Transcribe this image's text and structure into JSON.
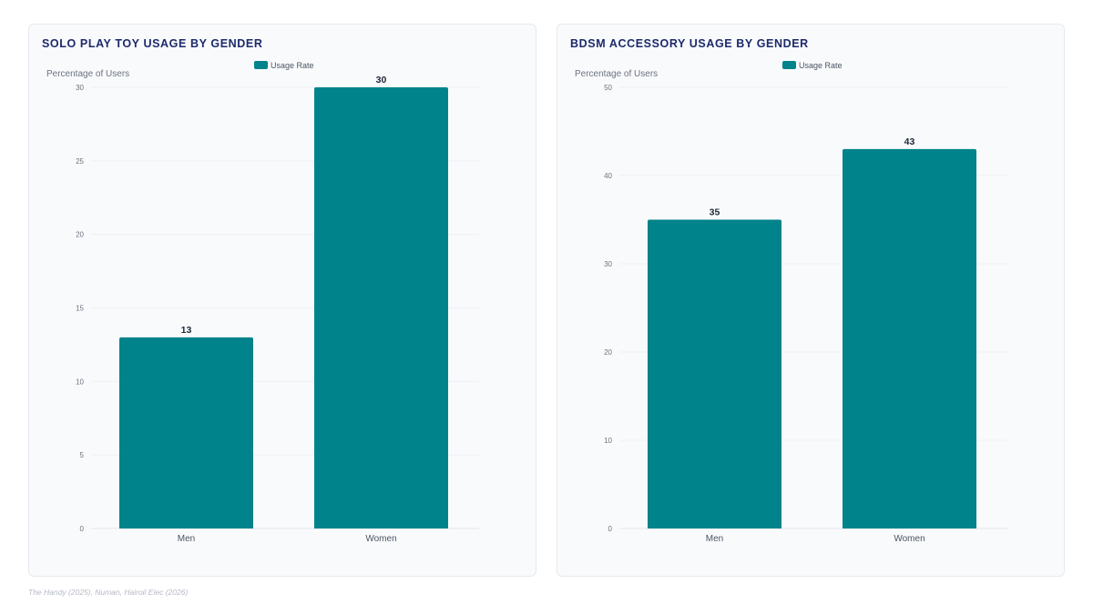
{
  "chart_data": [
    {
      "type": "bar",
      "title": "SOLO PLAY TOY USAGE BY GENDER",
      "ylabel": "Percentage of Users",
      "xlabel": "",
      "categories": [
        "Men",
        "Women"
      ],
      "series": [
        {
          "name": "Usage Rate",
          "values": [
            13,
            30
          ]
        }
      ],
      "ylim": [
        0,
        30
      ],
      "yticks": [
        0,
        5,
        10,
        15,
        20,
        25,
        30
      ],
      "grid": true,
      "legend": "top-center",
      "bar_color": "#00838a"
    },
    {
      "type": "bar",
      "title": "BDSM ACCESSORY USAGE BY GENDER",
      "ylabel": "Percentage of Users",
      "xlabel": "",
      "categories": [
        "Men",
        "Women"
      ],
      "series": [
        {
          "name": "Usage Rate",
          "values": [
            35,
            43
          ]
        }
      ],
      "ylim": [
        0,
        50
      ],
      "yticks": [
        0,
        10,
        20,
        30,
        40,
        50
      ],
      "grid": true,
      "legend": "top-center",
      "bar_color": "#00838a"
    }
  ],
  "footer": {
    "source": "The Handy (2025), Numan, Hairoil Elec (2026)"
  }
}
